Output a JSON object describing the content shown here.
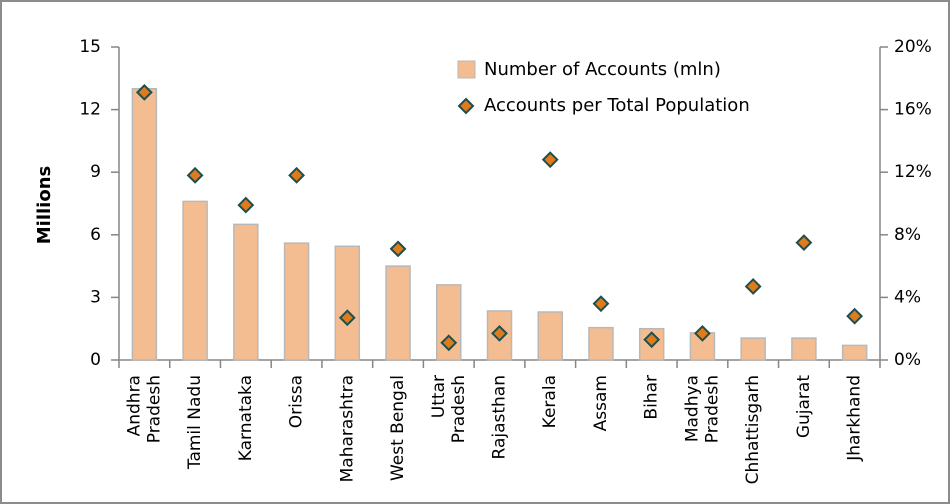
{
  "chart_data": {
    "type": "bar",
    "y_label": "Millions",
    "categories": [
      "Andhra\nPradesh",
      "Tamil Nadu",
      "Karnataka",
      "Orissa",
      "Maharashtra",
      "West Bengal",
      "Uttar\nPradesh",
      "Rajasthan",
      "Kerala",
      "Assam",
      "Bihar",
      "Madhya\nPradesh",
      "Chhattisgarh",
      "Gujarat",
      "Jharkhand"
    ],
    "series": [
      {
        "name": "Number of Accounts (mln)",
        "type": "bar",
        "color": "#f4bd91",
        "axis": "y",
        "values": [
          13.0,
          7.6,
          6.5,
          5.6,
          5.45,
          4.5,
          3.6,
          2.35,
          2.3,
          1.55,
          1.5,
          1.3,
          1.05,
          1.05,
          0.7
        ]
      },
      {
        "name": "Accounts per Total Population",
        "type": "scatter",
        "color": "#e07b1a",
        "axis": "y2",
        "values": [
          17.1,
          11.8,
          9.9,
          11.8,
          2.7,
          7.1,
          1.1,
          1.7,
          12.8,
          3.6,
          1.3,
          1.7,
          4.7,
          7.5,
          2.8
        ]
      }
    ],
    "ylim": [
      0,
      15
    ],
    "yticks": [
      0,
      3,
      6,
      9,
      12,
      15
    ],
    "y2lim": [
      0,
      20
    ],
    "y2ticks": [
      {
        "value": 0,
        "label": "0%"
      },
      {
        "value": 4,
        "label": "4%"
      },
      {
        "value": 8,
        "label": "8%"
      },
      {
        "value": 12,
        "label": "12%"
      },
      {
        "value": 16,
        "label": "16%"
      },
      {
        "value": 20,
        "label": "20%"
      }
    ],
    "grid": false
  }
}
